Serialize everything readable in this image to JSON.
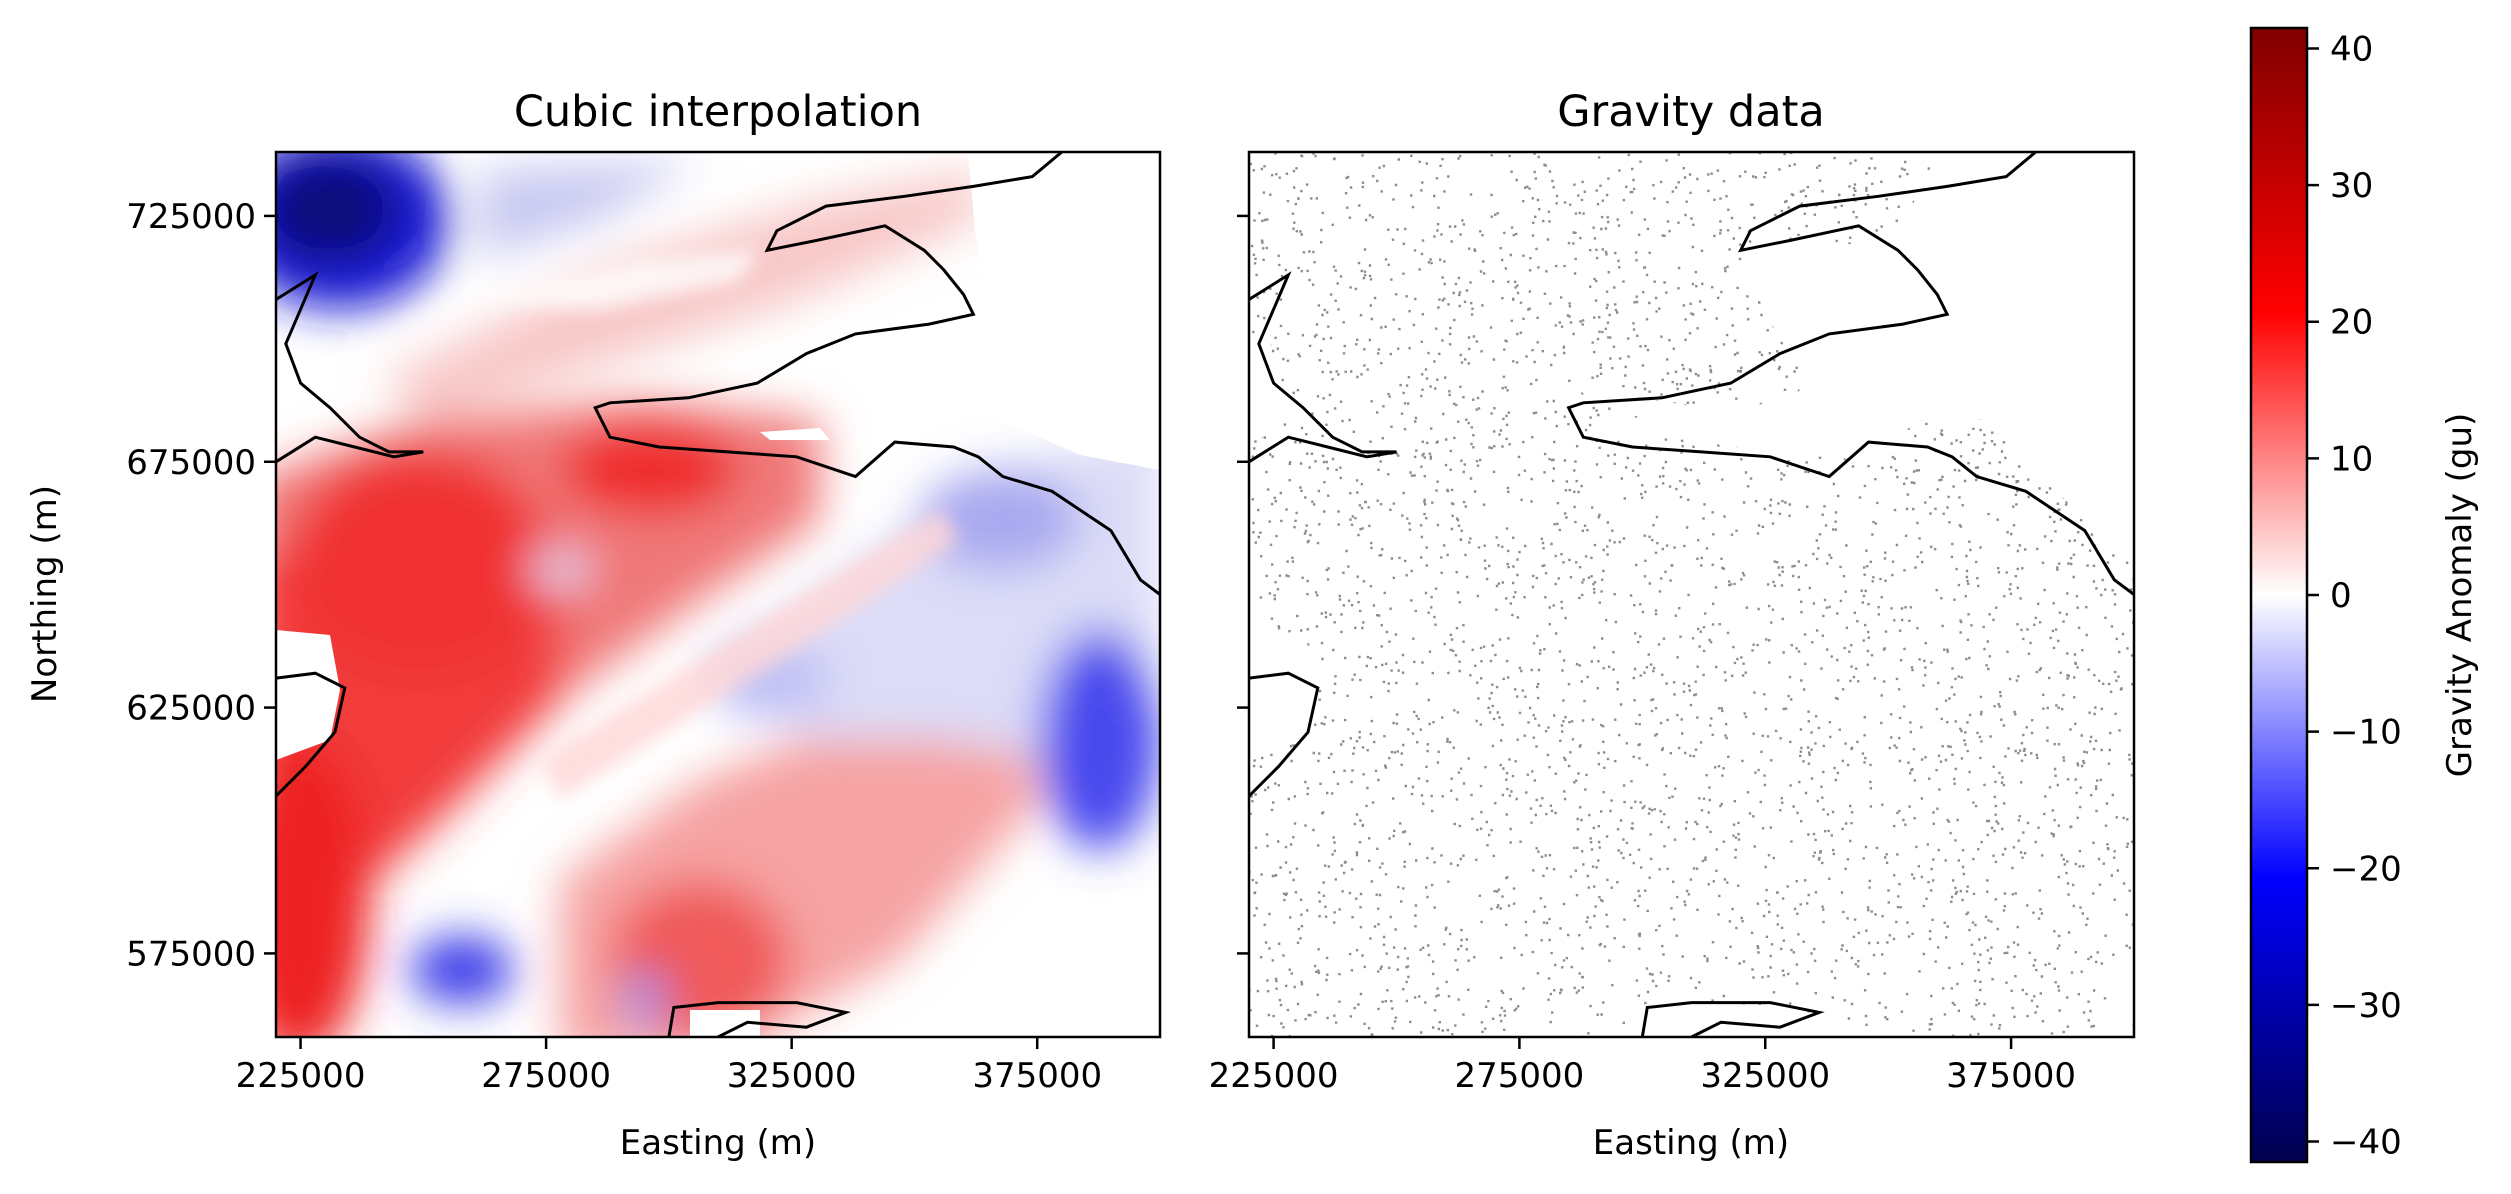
{
  "chart_data": [
    {
      "type": "heatmap",
      "title": "Cubic interpolation",
      "xlabel": "Easting (m)",
      "ylabel": "Northing (m)",
      "xlim": [
        220000,
        400000
      ],
      "ylim": [
        558000,
        738000
      ],
      "xticks": [
        225000,
        275000,
        325000,
        375000
      ],
      "xtick_labels": [
        "225000",
        "275000",
        "325000",
        "375000"
      ],
      "yticks": [
        575000,
        625000,
        675000,
        725000
      ],
      "ytick_labels": [
        "575000",
        "625000",
        "675000",
        "725000"
      ],
      "colormap": "seismic",
      "color_range": [
        -42,
        42
      ],
      "features": [
        {
          "label": "negative anomaly",
          "x": 232000,
          "y": 728000,
          "value": -38
        },
        {
          "label": "positive anomaly",
          "x": 300000,
          "y": 675000,
          "value": 26
        },
        {
          "label": "positive anomaly",
          "x": 245000,
          "y": 655000,
          "value": 22
        },
        {
          "label": "negative anomaly",
          "x": 393000,
          "y": 620000,
          "value": -20
        },
        {
          "label": "negative anomaly",
          "x": 262000,
          "y": 575000,
          "value": -20
        },
        {
          "label": "positive anomaly",
          "x": 225000,
          "y": 590000,
          "value": 30
        }
      ]
    },
    {
      "type": "scatter",
      "title": "Gravity data",
      "xlabel": "Easting (m)",
      "ylabel": "",
      "xlim": [
        220000,
        400000
      ],
      "ylim": [
        558000,
        738000
      ],
      "xticks": [
        225000,
        275000,
        325000,
        375000
      ],
      "xtick_labels": [
        "225000",
        "275000",
        "325000",
        "375000"
      ],
      "yticks": [
        575000,
        625000,
        675000,
        725000
      ],
      "ytick_labels": [],
      "marker_color": "#8c8c8c",
      "note": "dense gravity station locations"
    }
  ],
  "colorbar": {
    "label": "Gravity Anomaly (gu)",
    "ticks": [
      40,
      30,
      20,
      10,
      0,
      -10,
      -20,
      -30,
      -40
    ],
    "tick_labels": [
      "40",
      "30",
      "20",
      "10",
      "0",
      "−10",
      "−20",
      "−30",
      "−40"
    ],
    "range": [
      -41.5,
      41.5
    ]
  },
  "coastline": [
    [
      [
        380000,
        738000
      ],
      [
        374000,
        733000
      ],
      [
        362000,
        731000
      ],
      [
        348000,
        729000
      ],
      [
        332000,
        727000
      ],
      [
        322000,
        722000
      ],
      [
        320000,
        718000
      ],
      [
        330000,
        720000
      ],
      [
        344000,
        723000
      ],
      [
        352000,
        718000
      ],
      [
        356000,
        714000
      ],
      [
        360000,
        709000
      ],
      [
        362000,
        705000
      ],
      [
        353000,
        703000
      ],
      [
        338000,
        701000
      ],
      [
        328000,
        697000
      ],
      [
        318000,
        691000
      ],
      [
        304000,
        688000
      ],
      [
        288000,
        687000
      ],
      [
        285000,
        686000
      ],
      [
        288000,
        680000
      ],
      [
        298000,
        678000
      ],
      [
        312000,
        677000
      ],
      [
        326000,
        676000
      ],
      [
        338000,
        672000
      ],
      [
        346000,
        679000
      ],
      [
        358000,
        678000
      ],
      [
        363000,
        676000
      ],
      [
        368000,
        672000
      ],
      [
        378000,
        669000
      ],
      [
        390000,
        661000
      ],
      [
        396000,
        651000
      ],
      [
        400000,
        648000
      ]
    ],
    [
      [
        220000,
        708000
      ],
      [
        228000,
        713000
      ],
      [
        225000,
        706000
      ],
      [
        222000,
        699000
      ],
      [
        225000,
        691000
      ],
      [
        231000,
        686000
      ],
      [
        237000,
        680000
      ],
      [
        243000,
        677000
      ],
      [
        250000,
        677000
      ],
      [
        244000,
        676000
      ],
      [
        236000,
        678000
      ],
      [
        228000,
        680000
      ],
      [
        220000,
        675000
      ]
    ],
    [
      [
        220000,
        631000
      ],
      [
        228000,
        632000
      ],
      [
        234000,
        629000
      ],
      [
        232000,
        620000
      ],
      [
        226000,
        613000
      ],
      [
        220000,
        607000
      ]
    ],
    [
      [
        300000,
        558000
      ],
      [
        301000,
        564000
      ],
      [
        310000,
        565000
      ],
      [
        326000,
        565000
      ],
      [
        336000,
        563000
      ],
      [
        328000,
        560000
      ],
      [
        316000,
        561000
      ],
      [
        310000,
        558000
      ]
    ]
  ]
}
